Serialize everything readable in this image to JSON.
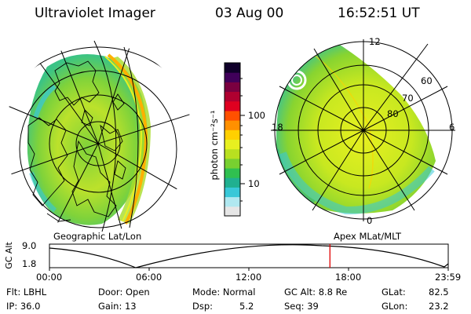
{
  "header": {
    "instrument": "Ultraviolet Imager",
    "date": "03 Aug 00",
    "time": "16:52:51 UT"
  },
  "colorbar": {
    "unit_label": "photon cm⁻²s⁻¹",
    "ticks": [
      "100",
      "10"
    ],
    "colors": [
      "#e6e6e6",
      "#b0e8f0",
      "#38c8d8",
      "#20b090",
      "#30c050",
      "#78d030",
      "#b8e020",
      "#e8f020",
      "#ffd000",
      "#ff9000",
      "#ff5000",
      "#e00020",
      "#b00030",
      "#7a0040",
      "#40005a",
      "#10002a"
    ]
  },
  "geo_map": {
    "caption": "Geographic Lat/Lon"
  },
  "mag_map": {
    "caption": "Apex MLat/MLT",
    "mlt_labels": {
      "top": "12",
      "left": "18",
      "right": "6",
      "bottom": "0"
    },
    "lat_labels": [
      "60",
      "70",
      "80"
    ]
  },
  "orbit": {
    "ylabel": "GC Alt",
    "y_ticks": [
      "9.0",
      "1.8"
    ],
    "x_ticks": [
      "00:00",
      "06:00",
      "12:00",
      "18:00",
      "23:59"
    ],
    "marker_color": "#e00000",
    "current_hour": 16.88
  },
  "info": {
    "filter": "Flt: LBHL",
    "ip": "IP: 36.0",
    "door": "Door: Open",
    "gain": "Gain: 13",
    "mode": "Mode: Normal",
    "dsp_label": "Dsp:",
    "dsp_value": "5.2",
    "gc_alt": "GC Alt: 8.8 Re",
    "seq": "Seq: 39",
    "glat_label": "GLat:",
    "glat_value": "82.5",
    "glon_label": "GLon:",
    "glon_value": "23.2"
  }
}
